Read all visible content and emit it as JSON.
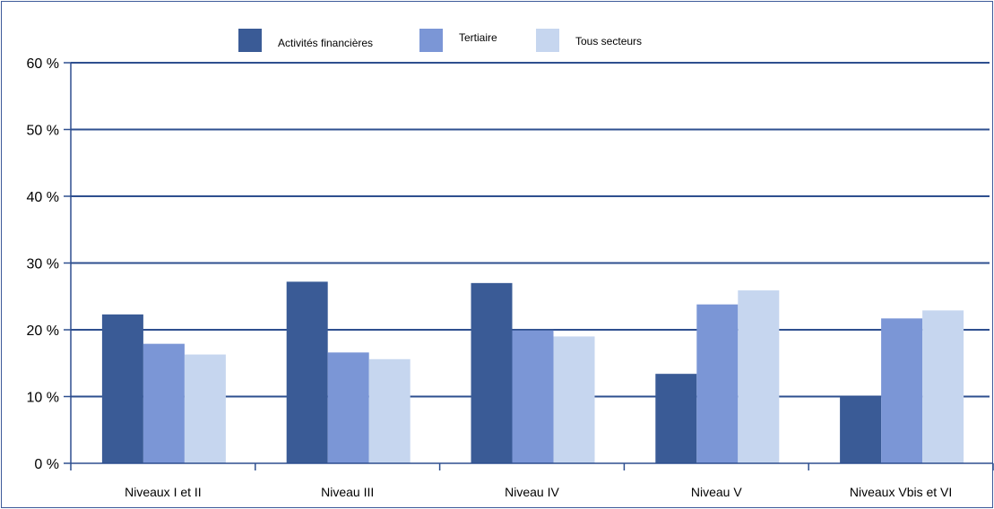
{
  "chart_data": {
    "type": "bar",
    "categories": [
      "Niveaux I et II",
      "Niveau III",
      "Niveau IV",
      "Niveau V",
      "Niveaux Vbis et VI"
    ],
    "series": [
      {
        "name": "Activités financières",
        "color": "#3a5b96",
        "values": [
          22.3,
          27.2,
          27.0,
          13.4,
          10.0
        ]
      },
      {
        "name": "Tertiaire",
        "color": "#7b96d6",
        "values": [
          17.9,
          16.6,
          19.9,
          23.8,
          21.7
        ]
      },
      {
        "name": "Tous secteurs",
        "color": "#c6d6ef",
        "values": [
          16.3,
          15.6,
          19.0,
          25.9,
          22.9
        ]
      }
    ],
    "yticks": [
      "0 %",
      "10 %",
      "20 %",
      "30 %",
      "40 %",
      "50 %",
      "60 %"
    ],
    "ylim": [
      0,
      60
    ],
    "grid": true,
    "legend_position": "top",
    "title": "",
    "xlabel": "",
    "ylabel": ""
  }
}
